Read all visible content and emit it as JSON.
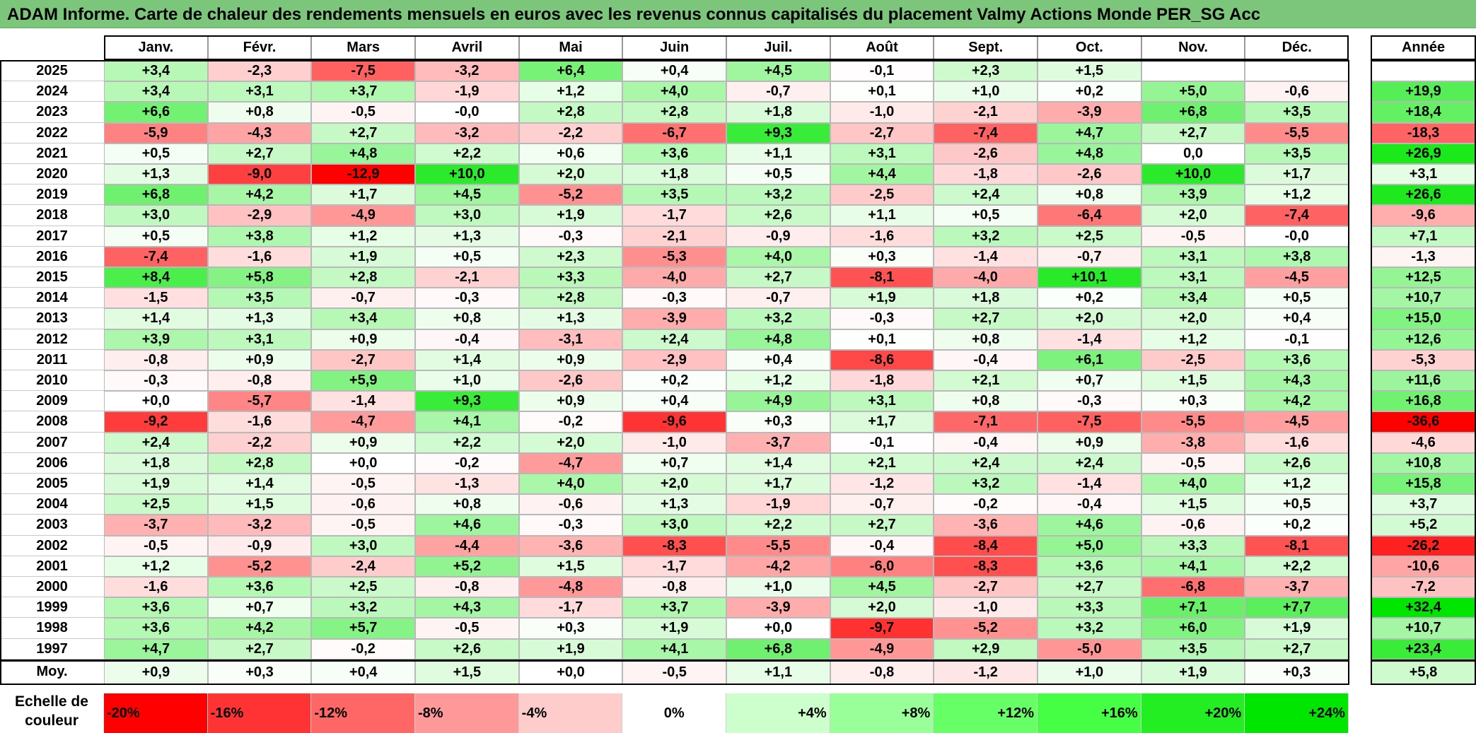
{
  "title": "ADAM Informe. Carte de chaleur des rendements mensuels en euros avec les revenus connus capitalisés du placement Valmy Actions Monde PER_SG Acc",
  "chart_data": {
    "type": "heatmap",
    "months": [
      "Janv.",
      "Févr.",
      "Mars",
      "Avril",
      "Mai",
      "Juin",
      "Juil.",
      "Août",
      "Sept.",
      "Oct.",
      "Nov.",
      "Déc."
    ],
    "annual_header": "Année",
    "rows": [
      {
        "year": "2025",
        "values": [
          "+3,4",
          "-2,3",
          "-7,5",
          "-3,2",
          "+6,4",
          "+0,4",
          "+4,5",
          "-0,1",
          "+2,3",
          "+1,5",
          "",
          ""
        ],
        "annual": ""
      },
      {
        "year": "2024",
        "values": [
          "+3,4",
          "+3,1",
          "+3,7",
          "-1,9",
          "+1,2",
          "+4,0",
          "-0,7",
          "+0,1",
          "+1,0",
          "+0,2",
          "+5,0",
          "-0,6"
        ],
        "annual": "+19,9"
      },
      {
        "year": "2023",
        "values": [
          "+6,6",
          "+0,8",
          "-0,5",
          "-0,0",
          "+2,8",
          "+2,8",
          "+1,8",
          "-1,0",
          "-2,1",
          "-3,9",
          "+6,8",
          "+3,5"
        ],
        "annual": "+18,4"
      },
      {
        "year": "2022",
        "values": [
          "-5,9",
          "-4,3",
          "+2,7",
          "-3,2",
          "-2,2",
          "-6,7",
          "+9,3",
          "-2,7",
          "-7,4",
          "+4,7",
          "+2,7",
          "-5,5"
        ],
        "annual": "-18,3"
      },
      {
        "year": "2021",
        "values": [
          "+0,5",
          "+2,7",
          "+4,8",
          "+2,2",
          "+0,6",
          "+3,6",
          "+1,1",
          "+3,1",
          "-2,6",
          "+4,8",
          "0,0",
          "+3,5"
        ],
        "annual": "+26,9"
      },
      {
        "year": "2020",
        "values": [
          "+1,3",
          "-9,0",
          "-12,9",
          "+10,0",
          "+2,0",
          "+1,8",
          "+0,5",
          "+4,4",
          "-1,8",
          "-2,6",
          "+10,0",
          "+1,7"
        ],
        "annual": "+3,1"
      },
      {
        "year": "2019",
        "values": [
          "+6,8",
          "+4,2",
          "+1,7",
          "+4,5",
          "-5,2",
          "+3,5",
          "+3,2",
          "-2,5",
          "+2,4",
          "+0,8",
          "+3,9",
          "+1,2"
        ],
        "annual": "+26,6"
      },
      {
        "year": "2018",
        "values": [
          "+3,0",
          "-2,9",
          "-4,9",
          "+3,0",
          "+1,9",
          "-1,7",
          "+2,6",
          "+1,1",
          "+0,5",
          "-6,4",
          "+2,0",
          "-7,4"
        ],
        "annual": "-9,6"
      },
      {
        "year": "2017",
        "values": [
          "+0,5",
          "+3,8",
          "+1,2",
          "+1,3",
          "-0,3",
          "-2,1",
          "-0,9",
          "-1,6",
          "+3,2",
          "+2,5",
          "-0,5",
          "-0,0"
        ],
        "annual": "+7,1"
      },
      {
        "year": "2016",
        "values": [
          "-7,4",
          "-1,6",
          "+1,9",
          "+0,5",
          "+2,3",
          "-5,3",
          "+4,0",
          "+0,3",
          "-1,4",
          "-0,7",
          "+3,1",
          "+3,8"
        ],
        "annual": "-1,3"
      },
      {
        "year": "2015",
        "values": [
          "+8,4",
          "+5,8",
          "+2,8",
          "-2,1",
          "+3,3",
          "-4,0",
          "+2,7",
          "-8,1",
          "-4,0",
          "+10,1",
          "+3,1",
          "-4,5"
        ],
        "annual": "+12,5"
      },
      {
        "year": "2014",
        "values": [
          "-1,5",
          "+3,5",
          "-0,7",
          "-0,3",
          "+2,8",
          "-0,3",
          "-0,7",
          "+1,9",
          "+1,8",
          "+0,2",
          "+3,4",
          "+0,5"
        ],
        "annual": "+10,7"
      },
      {
        "year": "2013",
        "values": [
          "+1,4",
          "+1,3",
          "+3,4",
          "+0,8",
          "+1,3",
          "-3,9",
          "+3,2",
          "-0,3",
          "+2,7",
          "+2,0",
          "+2,0",
          "+0,4"
        ],
        "annual": "+15,0"
      },
      {
        "year": "2012",
        "values": [
          "+3,9",
          "+3,1",
          "+0,9",
          "-0,4",
          "-3,1",
          "+2,4",
          "+4,8",
          "+0,1",
          "+0,8",
          "-1,4",
          "+1,2",
          "-0,1"
        ],
        "annual": "+12,6"
      },
      {
        "year": "2011",
        "values": [
          "-0,8",
          "+0,9",
          "-2,7",
          "+1,4",
          "+0,9",
          "-2,9",
          "+0,4",
          "-8,6",
          "-0,4",
          "+6,1",
          "-2,5",
          "+3,6"
        ],
        "annual": "-5,3"
      },
      {
        "year": "2010",
        "values": [
          "-0,3",
          "-0,8",
          "+5,9",
          "+1,0",
          "-2,6",
          "+0,2",
          "+1,2",
          "-1,8",
          "+2,1",
          "+0,7",
          "+1,5",
          "+4,3"
        ],
        "annual": "+11,6"
      },
      {
        "year": "2009",
        "values": [
          "+0,0",
          "-5,7",
          "-1,4",
          "+9,3",
          "+0,9",
          "+0,4",
          "+4,9",
          "+3,1",
          "+0,8",
          "-0,3",
          "+0,3",
          "+4,2"
        ],
        "annual": "+16,8"
      },
      {
        "year": "2008",
        "values": [
          "-9,2",
          "-1,6",
          "-4,7",
          "+4,1",
          "-0,2",
          "-9,6",
          "+0,3",
          "+1,7",
          "-7,1",
          "-7,5",
          "-5,5",
          "-4,5"
        ],
        "annual": "-36,6"
      },
      {
        "year": "2007",
        "values": [
          "+2,4",
          "-2,2",
          "+0,9",
          "+2,2",
          "+2,0",
          "-1,0",
          "-3,7",
          "-0,1",
          "-0,4",
          "+0,9",
          "-3,8",
          "-1,6"
        ],
        "annual": "-4,6"
      },
      {
        "year": "2006",
        "values": [
          "+1,8",
          "+2,8",
          "+0,0",
          "-0,2",
          "-4,7",
          "+0,7",
          "+1,4",
          "+2,1",
          "+2,4",
          "+2,4",
          "-0,5",
          "+2,6"
        ],
        "annual": "+10,8"
      },
      {
        "year": "2005",
        "values": [
          "+1,9",
          "+1,4",
          "-0,5",
          "-1,3",
          "+4,0",
          "+2,0",
          "+1,7",
          "-1,2",
          "+3,2",
          "-1,4",
          "+4,0",
          "+1,2"
        ],
        "annual": "+15,8"
      },
      {
        "year": "2004",
        "values": [
          "+2,5",
          "+1,5",
          "-0,6",
          "+0,8",
          "-0,6",
          "+1,3",
          "-1,9",
          "-0,7",
          "-0,2",
          "-0,4",
          "+1,5",
          "+0,5"
        ],
        "annual": "+3,7"
      },
      {
        "year": "2003",
        "values": [
          "-3,7",
          "-3,2",
          "-0,5",
          "+4,6",
          "-0,3",
          "+3,0",
          "+2,2",
          "+2,7",
          "-3,6",
          "+4,6",
          "-0,6",
          "+0,2"
        ],
        "annual": "+5,2"
      },
      {
        "year": "2002",
        "values": [
          "-0,5",
          "-0,9",
          "+3,0",
          "-4,4",
          "-3,6",
          "-8,3",
          "-5,5",
          "-0,4",
          "-8,4",
          "+5,0",
          "+3,3",
          "-8,1"
        ],
        "annual": "-26,2"
      },
      {
        "year": "2001",
        "values": [
          "+1,2",
          "-5,2",
          "-2,4",
          "+5,2",
          "+1,5",
          "-1,7",
          "-4,2",
          "-6,0",
          "-8,3",
          "+3,6",
          "+4,1",
          "+2,2"
        ],
        "annual": "-10,6"
      },
      {
        "year": "2000",
        "values": [
          "-1,6",
          "+3,6",
          "+2,5",
          "-0,8",
          "-4,8",
          "-0,8",
          "+1,0",
          "+4,5",
          "-2,7",
          "+2,7",
          "-6,8",
          "-3,7"
        ],
        "annual": "-7,2"
      },
      {
        "year": "1999",
        "values": [
          "+3,6",
          "+0,7",
          "+3,2",
          "+4,3",
          "-1,7",
          "+3,7",
          "-3,9",
          "+2,0",
          "-1,0",
          "+3,3",
          "+7,1",
          "+7,7"
        ],
        "annual": "+32,4"
      },
      {
        "year": "1998",
        "values": [
          "+3,6",
          "+4,2",
          "+5,7",
          "-0,5",
          "+0,3",
          "+1,9",
          "+0,0",
          "-9,7",
          "-5,2",
          "+3,2",
          "+6,0",
          "+1,9"
        ],
        "annual": "+10,7"
      },
      {
        "year": "1997",
        "values": [
          "+4,7",
          "+2,7",
          "-0,2",
          "+2,6",
          "+1,9",
          "+4,1",
          "+6,8",
          "-4,9",
          "+2,9",
          "-5,0",
          "+3,5",
          "+2,7"
        ],
        "annual": "+23,4"
      }
    ],
    "average": {
      "label": "Moy.",
      "values": [
        "+0,9",
        "+0,3",
        "+0,4",
        "+1,5",
        "+0,0",
        "-0,5",
        "+1,1",
        "-0,8",
        "-1,2",
        "+1,0",
        "+1,9",
        "+0,3"
      ],
      "annual": "+5,8"
    },
    "scale": {
      "label_line1": "Echelle de",
      "label_line2": "couleur",
      "items": [
        {
          "label": "-20%",
          "value": -20,
          "color": "#ff0000"
        },
        {
          "label": "-16%",
          "value": -16,
          "color": "#ff3333"
        },
        {
          "label": "-12%",
          "value": -12,
          "color": "#ff6666"
        },
        {
          "label": "-8%",
          "value": -8,
          "color": "#ff9999"
        },
        {
          "label": "-4%",
          "value": -4,
          "color": "#ffcccc"
        },
        {
          "label": "0%",
          "value": 0,
          "color": "#ffffff"
        },
        {
          "label": "+4%",
          "value": 4,
          "color": "#ccffcc"
        },
        {
          "label": "+8%",
          "value": 8,
          "color": "#99ff99"
        },
        {
          "label": "+12%",
          "value": 12,
          "color": "#66ff66"
        },
        {
          "label": "+16%",
          "value": 16,
          "color": "#44ff44"
        },
        {
          "label": "+20%",
          "value": 20,
          "color": "#22ee22"
        },
        {
          "label": "+24%",
          "value": 24,
          "color": "#00e600"
        }
      ]
    }
  }
}
